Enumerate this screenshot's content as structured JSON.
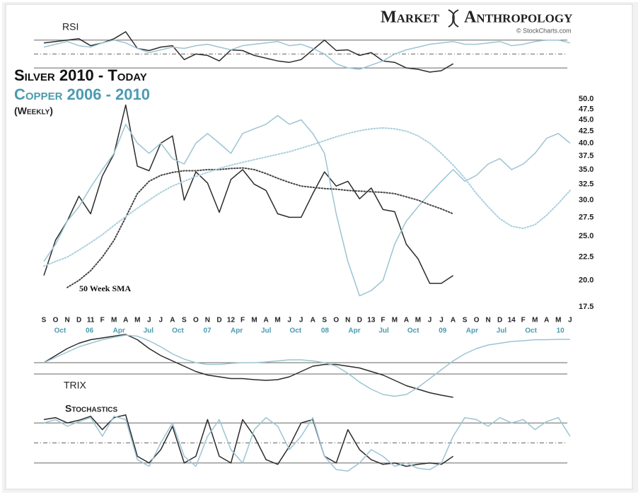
{
  "chart_data": [
    {
      "type": "line",
      "title": "RSI",
      "ylim": [
        26,
        85
      ],
      "ref_lines": [
        30,
        50,
        70
      ],
      "series": [
        {
          "color": "#2b2b2b",
          "values": [
            66,
            68,
            70,
            72,
            62,
            66,
            72,
            82,
            58,
            55,
            60,
            62,
            42,
            50,
            48,
            40,
            56,
            55,
            48,
            44,
            40,
            38,
            42,
            56,
            70,
            55,
            56,
            48,
            52,
            40,
            38,
            30,
            28,
            24,
            26,
            36,
            null,
            null,
            null,
            null,
            null,
            null,
            null,
            null,
            null,
            null
          ]
        },
        {
          "color": "#9cc4d3",
          "values": [
            60,
            64,
            68,
            62,
            60,
            66,
            70,
            66,
            58,
            52,
            56,
            60,
            58,
            62,
            64,
            60,
            56,
            62,
            64,
            66,
            68,
            62,
            64,
            58,
            50,
            36,
            30,
            28,
            34,
            40,
            50,
            56,
            60,
            64,
            66,
            68,
            64,
            64,
            66,
            68,
            62,
            64,
            68,
            70,
            70,
            66
          ]
        }
      ]
    },
    {
      "type": "line",
      "brand": [
        "Market",
        "Anthropology"
      ],
      "source": "© StockCharts.com",
      "subtitle": "(Weekly)",
      "annotation": "50 Week SMA",
      "log_scale": true,
      "categories": [
        "S",
        "O",
        "N",
        "D",
        "11",
        "F",
        "M",
        "A",
        "M",
        "J",
        "J",
        "A",
        "S",
        "O",
        "N",
        "D",
        "12",
        "F",
        "M",
        "A",
        "M",
        "J",
        "J",
        "A",
        "S",
        "O",
        "N",
        "D",
        "13",
        "F",
        "M",
        "A",
        "M",
        "J",
        "J",
        "A",
        "S",
        "O",
        "N",
        "D",
        "14",
        "F",
        "M",
        "A",
        "M",
        "J"
      ],
      "secondary_categories": [
        "Oct",
        "06",
        "Apr",
        "Jul",
        "Oct",
        "07",
        "Apr",
        "Jul",
        "Oct",
        "08",
        "Apr",
        "Jul",
        "Oct",
        "09",
        "Apr",
        "Jul",
        "Oct",
        "10"
      ],
      "ylim": [
        17.5,
        50
      ],
      "yticks": [
        {
          "value": 17.5,
          "label": "17.5"
        },
        {
          "value": 20,
          "label": "20.0"
        },
        {
          "value": 22.5,
          "label": "22.5"
        },
        {
          "value": 25,
          "label": "25.0"
        },
        {
          "value": 27.5,
          "label": "27.5"
        },
        {
          "value": 30,
          "label": "30.0"
        },
        {
          "value": 32.5,
          "label": "32.5"
        },
        {
          "value": 35,
          "label": "35.0"
        },
        {
          "value": 37.5,
          "label": "37.5"
        },
        {
          "value": 40,
          "label": "40.0"
        },
        {
          "value": 42.5,
          "label": "42.5"
        },
        {
          "value": 45,
          "label": "45.0"
        },
        {
          "value": 47.5,
          "label": "47.5"
        },
        {
          "value": 50,
          "label": "50.0"
        }
      ],
      "series": [
        {
          "name": "Silver 2010 - Today",
          "color": "#2b2b2b",
          "values": [
            20.5,
            24.5,
            27,
            30.6,
            28,
            33.9,
            37.9,
            48.5,
            35.6,
            34.8,
            40,
            41.5,
            30,
            34.6,
            32.7,
            28.2,
            33.3,
            35,
            32.5,
            31.5,
            28,
            27.5,
            27.5,
            31,
            34.6,
            32.2,
            33,
            30.2,
            31.9,
            28.6,
            28.3,
            24,
            22.3,
            19.7,
            19.7,
            20.5,
            null,
            null,
            null,
            null,
            null,
            null,
            null,
            null,
            null,
            null
          ]
        },
        {
          "name": "Copper 2006 - 2010",
          "color": "#9cc4d3",
          "values": [
            22,
            24,
            27,
            29,
            32,
            35,
            38,
            44,
            40,
            38,
            40,
            37,
            36,
            40,
            42,
            40,
            38,
            42,
            43,
            44,
            46,
            44,
            45,
            42,
            38,
            28,
            22,
            18.5,
            19,
            20,
            24,
            27,
            29,
            31,
            33,
            35,
            33,
            34,
            36,
            37,
            35,
            36,
            38,
            41,
            42,
            40
          ]
        },
        {
          "color": "#444444",
          "dash": "dotted",
          "values": [
            null,
            null,
            19.3,
            20,
            21,
            22.5,
            24.5,
            27.5,
            31,
            33,
            34,
            34.5,
            34.8,
            34.8,
            35,
            35,
            35.2,
            35.3,
            35,
            34.3,
            33.5,
            32.8,
            32.2,
            32,
            31.8,
            31.7,
            31.5,
            31.4,
            31.3,
            31.2,
            31,
            30.5,
            30,
            29.3,
            28.7,
            28,
            null,
            null,
            null,
            null,
            null,
            null,
            null,
            null,
            null,
            null
          ]
        },
        {
          "color": "#a9cfdc",
          "dash": "dotted",
          "values": [
            21.5,
            22,
            22.5,
            23.3,
            24.2,
            25.2,
            26.4,
            27.6,
            28.8,
            30,
            31.2,
            32.2,
            33,
            33.8,
            34.5,
            35.2,
            35.8,
            36.3,
            36.8,
            37.3,
            37.8,
            38.3,
            39,
            39.7,
            40.5,
            41.3,
            42,
            42.6,
            43,
            43.2,
            43,
            42.5,
            41.5,
            40,
            38,
            35.8,
            33.5,
            31,
            29,
            27.3,
            26.3,
            26,
            26.5,
            27.8,
            29.5,
            31.5
          ]
        }
      ]
    },
    {
      "type": "line",
      "title": "TRIX",
      "ylim": [
        -1,
        1
      ],
      "ref_lines": [
        0.1,
        -0.22
      ],
      "series": [
        {
          "color": "#2b2b2b",
          "values": [
            0.1,
            0.3,
            0.5,
            0.65,
            0.75,
            0.8,
            0.85,
            0.9,
            0.75,
            0.5,
            0.3,
            0.15,
            0.0,
            -0.15,
            -0.25,
            -0.3,
            -0.35,
            -0.35,
            -0.38,
            -0.4,
            -0.38,
            -0.3,
            -0.15,
            0.0,
            0.05,
            0.05,
            0.0,
            -0.05,
            -0.15,
            -0.25,
            -0.4,
            -0.55,
            -0.65,
            -0.75,
            -0.82,
            -0.88,
            null,
            null,
            null,
            null,
            null,
            null,
            null,
            null,
            null,
            null
          ]
        },
        {
          "color": "#9cc4d3",
          "values": [
            0.1,
            0.25,
            0.4,
            0.55,
            0.65,
            0.75,
            0.82,
            0.88,
            0.85,
            0.72,
            0.55,
            0.35,
            0.2,
            0.1,
            0.05,
            0.05,
            0.08,
            0.1,
            0.1,
            0.12,
            0.15,
            0.18,
            0.18,
            0.15,
            0.1,
            0.0,
            -0.2,
            -0.45,
            -0.65,
            -0.8,
            -0.85,
            -0.8,
            -0.6,
            -0.35,
            -0.1,
            0.15,
            0.35,
            0.5,
            0.6,
            0.65,
            0.7,
            0.72,
            0.75,
            0.75,
            0.76,
            0.76
          ]
        }
      ]
    },
    {
      "type": "line",
      "title": "Stochastics",
      "ylim": [
        4,
        94
      ],
      "ref_lines": [
        20,
        50,
        80
      ],
      "series": [
        {
          "color": "#2b2b2b",
          "values": [
            85,
            88,
            80,
            84,
            90,
            70,
            88,
            92,
            30,
            20,
            40,
            75,
            20,
            30,
            85,
            30,
            20,
            85,
            60,
            25,
            18,
            45,
            80,
            85,
            30,
            20,
            70,
            40,
            25,
            18,
            20,
            15,
            18,
            20,
            18,
            30,
            null,
            null,
            null,
            null,
            null,
            null,
            null,
            null,
            null,
            null
          ]
        },
        {
          "color": "#9cc4d3",
          "values": [
            80,
            85,
            75,
            82,
            88,
            60,
            90,
            85,
            25,
            15,
            50,
            80,
            30,
            15,
            60,
            85,
            40,
            20,
            70,
            88,
            75,
            40,
            60,
            88,
            30,
            10,
            8,
            20,
            40,
            30,
            15,
            20,
            12,
            10,
            20,
            60,
            88,
            85,
            75,
            88,
            80,
            85,
            70,
            82,
            88,
            60
          ]
        }
      ]
    }
  ]
}
